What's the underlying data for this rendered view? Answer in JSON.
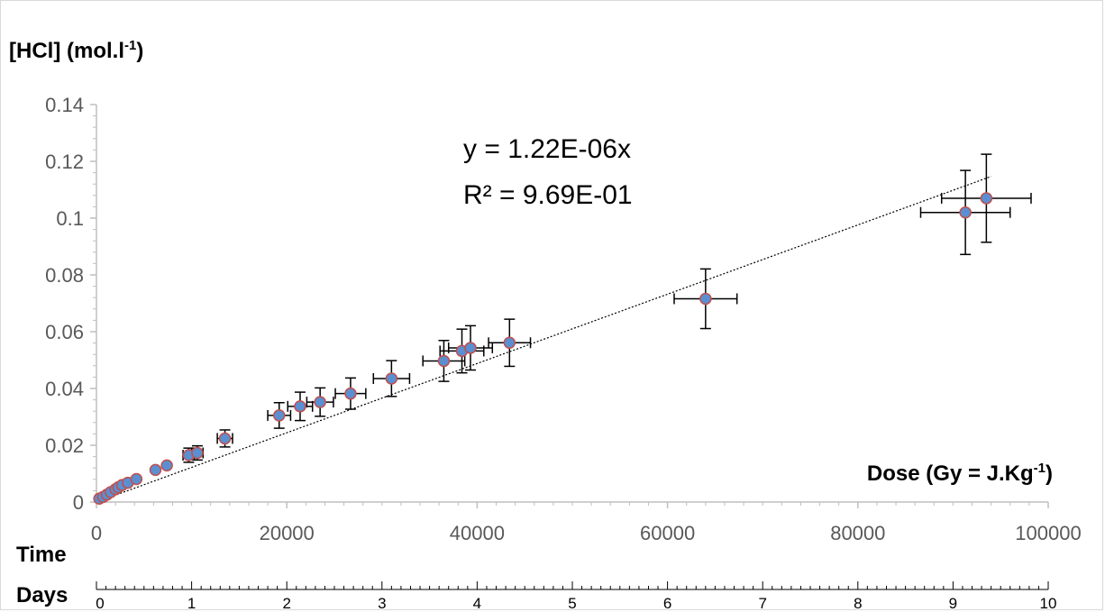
{
  "chart_data": {
    "type": "scatter",
    "ylabel": {
      "main": "[HCl]  (mol.l",
      "sup": "-1",
      "end": ")"
    },
    "xlabel": {
      "main": "Dose (Gy = J.Kg",
      "sup": "-1",
      "end": ")"
    },
    "time_label": "Time",
    "days_label": "Days",
    "ylim": [
      0,
      0.14
    ],
    "xlim": [
      0,
      100000
    ],
    "y_ticks": [
      "0",
      "0.02",
      "0.04",
      "0.06",
      "0.08",
      "0.1",
      "0.12",
      "0.14"
    ],
    "x_ticks": [
      "0",
      "20000",
      "40000",
      "60000",
      "80000",
      "100000"
    ],
    "days_ticks": [
      "0",
      "1",
      "2",
      "3",
      "4",
      "5",
      "6",
      "7",
      "8",
      "9",
      "10"
    ],
    "trendline": {
      "slope": 1.22e-06,
      "equation": "y = 1.22E-06x",
      "r2_label": "R² = 9.69E-01"
    },
    "grid": false,
    "colors": {
      "marker_fill": "#5b8fd1",
      "marker_edge": "#c0504d",
      "error_bar": "#000000",
      "axis": "#bfbfbf",
      "trend": "#000000"
    },
    "points": [
      {
        "x": 300,
        "y": 0.0012
      },
      {
        "x": 700,
        "y": 0.0018
      },
      {
        "x": 1100,
        "y": 0.0026
      },
      {
        "x": 1500,
        "y": 0.0035
      },
      {
        "x": 2000,
        "y": 0.0045
      },
      {
        "x": 2300,
        "y": 0.0052
      },
      {
        "x": 2700,
        "y": 0.006
      },
      {
        "x": 3300,
        "y": 0.0068
      },
      {
        "x": 4200,
        "y": 0.0081
      },
      {
        "x": 6200,
        "y": 0.0113
      },
      {
        "x": 7400,
        "y": 0.0129
      },
      {
        "x": 9700,
        "y": 0.0165,
        "ey": 0.0025,
        "ex": 600
      },
      {
        "x": 10600,
        "y": 0.0173,
        "ey": 0.0025,
        "ex": 600
      },
      {
        "x": 13500,
        "y": 0.0224,
        "ey": 0.003,
        "ex": 800
      },
      {
        "x": 19200,
        "y": 0.0305,
        "ey": 0.0045,
        "ex": 1200
      },
      {
        "x": 21400,
        "y": 0.0337,
        "ey": 0.005,
        "ex": 1300
      },
      {
        "x": 23500,
        "y": 0.0352,
        "ey": 0.005,
        "ex": 1400
      },
      {
        "x": 26700,
        "y": 0.0382,
        "ey": 0.0055,
        "ex": 1600
      },
      {
        "x": 31000,
        "y": 0.0435,
        "ey": 0.0063,
        "ex": 1900
      },
      {
        "x": 36500,
        "y": 0.0497,
        "ey": 0.0072,
        "ex": 2200
      },
      {
        "x": 38400,
        "y": 0.0532,
        "ey": 0.0077,
        "ex": 2300
      },
      {
        "x": 39300,
        "y": 0.0543,
        "ey": 0.0078,
        "ex": 2300
      },
      {
        "x": 43400,
        "y": 0.0561,
        "ey": 0.0083,
        "ex": 2200
      },
      {
        "x": 64000,
        "y": 0.0716,
        "ey": 0.0105,
        "ex": 3300
      },
      {
        "x": 91300,
        "y": 0.102,
        "ey": 0.0148,
        "ex": 4700
      },
      {
        "x": 93500,
        "y": 0.107,
        "ey": 0.0155,
        "ex": 4700
      }
    ]
  }
}
